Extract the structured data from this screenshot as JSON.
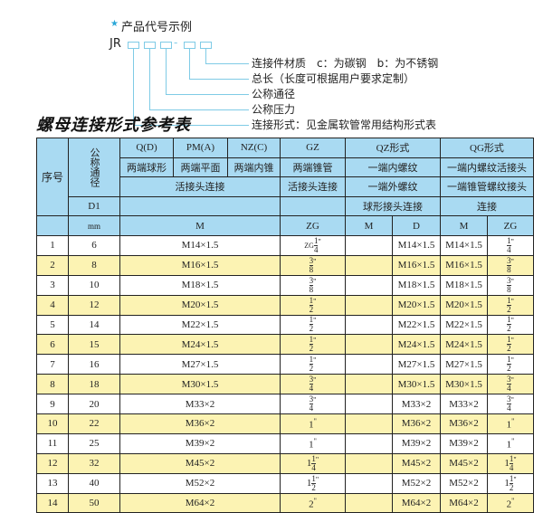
{
  "diagram": {
    "star": "★",
    "title": "产品代号示例",
    "code": "JR",
    "dash": "-",
    "labels": [
      "连接件材质　c：为碳钢　b：为不锈钢",
      "总长（长度可根据用户要求定制）",
      "公称通径",
      "公称压力",
      "连接形式：见金属软管常用结构形式表"
    ]
  },
  "table_title": "螺母连接形式参考表",
  "header": {
    "seq": "序号",
    "nominal": "公称通径",
    "d1": "D1",
    "mm": "mm",
    "q": "Q(D)",
    "pm": "PM(A)",
    "nz": "NZ(C)",
    "gz": "GZ",
    "qz": "QZ形式",
    "qg": "QG形式",
    "q_desc": "两端球形",
    "pm_desc": "两端平面",
    "nz_desc": "两端内锥",
    "gz_desc": "两端锥管",
    "qz_desc": "一端内螺纹",
    "qg_desc": "一端内螺纹活接头",
    "union": "活接头连接",
    "gz_union": "活接头连接",
    "qz_desc2": "一端外螺纹",
    "qg_desc2": "一端锥管螺纹接头",
    "qz_desc3": "球形接头连接",
    "qg_desc3": "连接",
    "m": "M",
    "zg": "ZG",
    "qz_m": "M",
    "qz_d": "D",
    "qg_m": "M",
    "qg_zg": "ZG"
  },
  "rows": [
    {
      "no": "1",
      "dn": "6",
      "m": "M14×1.5",
      "zg": {
        "pre": "ZG",
        "w": "",
        "n": "1",
        "d": "4"
      },
      "d": "M14×1.5",
      "qgm": "M14×1.5",
      "qgzg": {
        "w": "",
        "n": "1",
        "d": "4"
      }
    },
    {
      "no": "2",
      "dn": "8",
      "m": "M16×1.5",
      "zg": {
        "w": "",
        "n": "3",
        "d": "8"
      },
      "d": "M16×1.5",
      "qgm": "M16×1.5",
      "qgzg": {
        "w": "",
        "n": "3",
        "d": "8"
      }
    },
    {
      "no": "3",
      "dn": "10",
      "m": "M18×1.5",
      "zg": {
        "w": "",
        "n": "3",
        "d": "8"
      },
      "d": "M18×1.5",
      "qgm": "M18×1.5",
      "qgzg": {
        "w": "",
        "n": "3",
        "d": "8"
      }
    },
    {
      "no": "4",
      "dn": "12",
      "m": "M20×1.5",
      "zg": {
        "w": "",
        "n": "1",
        "d": "2"
      },
      "d": "M20×1.5",
      "qgm": "M20×1.5",
      "qgzg": {
        "w": "",
        "n": "1",
        "d": "2"
      }
    },
    {
      "no": "5",
      "dn": "14",
      "m": "M22×1.5",
      "zg": {
        "w": "",
        "n": "1",
        "d": "2"
      },
      "d": "M22×1.5",
      "qgm": "M22×1.5",
      "qgzg": {
        "w": "",
        "n": "1",
        "d": "2"
      }
    },
    {
      "no": "6",
      "dn": "15",
      "m": "M24×1.5",
      "zg": {
        "w": "",
        "n": "1",
        "d": "2"
      },
      "d": "M24×1.5",
      "qgm": "M24×1.5",
      "qgzg": {
        "w": "",
        "n": "1",
        "d": "2"
      }
    },
    {
      "no": "7",
      "dn": "16",
      "m": "M27×1.5",
      "zg": {
        "w": "",
        "n": "1",
        "d": "2"
      },
      "d": "M27×1.5",
      "qgm": "M27×1.5",
      "qgzg": {
        "w": "",
        "n": "1",
        "d": "2"
      }
    },
    {
      "no": "8",
      "dn": "18",
      "m": "M30×1.5",
      "zg": {
        "w": "",
        "n": "3",
        "d": "4"
      },
      "d": "M30×1.5",
      "qgm": "M30×1.5",
      "qgzg": {
        "w": "",
        "n": "3",
        "d": "4"
      }
    },
    {
      "no": "9",
      "dn": "20",
      "m": "M33×2",
      "zg": {
        "w": "",
        "n": "3",
        "d": "4"
      },
      "d": "M33×2",
      "qgm": "M33×2",
      "qgzg": {
        "w": "",
        "n": "3",
        "d": "4"
      }
    },
    {
      "no": "10",
      "dn": "22",
      "m": "M36×2",
      "zg": {
        "w": "1"
      },
      "d": "M36×2",
      "qgm": "M36×2",
      "qgzg": {
        "w": "1"
      }
    },
    {
      "no": "11",
      "dn": "25",
      "m": "M39×2",
      "zg": {
        "w": "1"
      },
      "d": "M39×2",
      "qgm": "M39×2",
      "qgzg": {
        "w": "1"
      }
    },
    {
      "no": "12",
      "dn": "32",
      "m": "M45×2",
      "zg": {
        "w": "1",
        "n": "1",
        "d": "4"
      },
      "d": "M45×2",
      "qgm": "M45×2",
      "qgzg": {
        "w": "1",
        "n": "1",
        "d": "4"
      }
    },
    {
      "no": "13",
      "dn": "40",
      "m": "M52×2",
      "zg": {
        "w": "1",
        "n": "1",
        "d": "2"
      },
      "d": "M52×2",
      "qgm": "M52×2",
      "qgzg": {
        "w": "1",
        "n": "1",
        "d": "2"
      }
    },
    {
      "no": "14",
      "dn": "50",
      "m": "M64×2",
      "zg": {
        "w": "2"
      },
      "d": "M64×2",
      "qgm": "M64×2",
      "qgzg": {
        "w": "2"
      }
    }
  ],
  "colors": {
    "header": "#a9daf2",
    "stripe": "#fcf3b3",
    "accent": "#2aa7d8"
  }
}
